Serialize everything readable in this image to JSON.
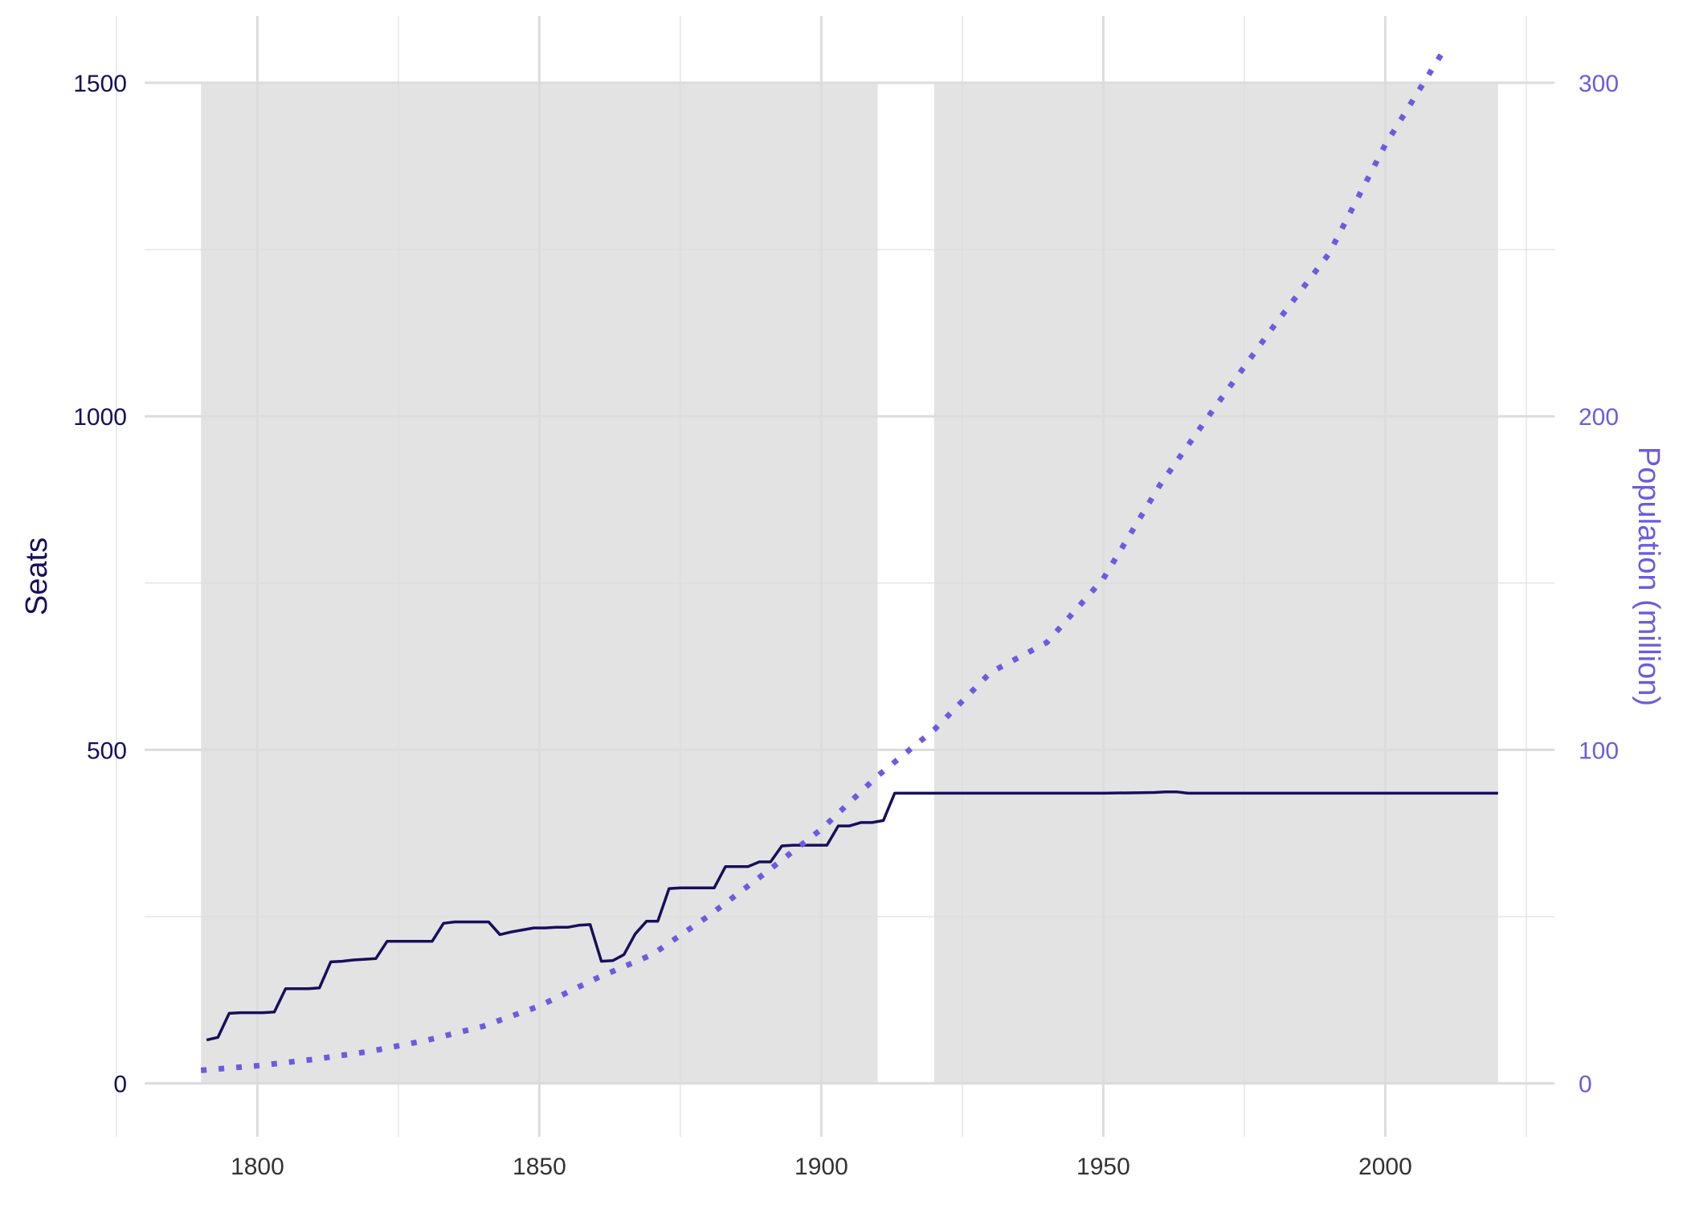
{
  "chart_data": {
    "type": "line",
    "title": "",
    "xlabel": "",
    "ylabel": "Seats",
    "ylabel_right": "Population (million)",
    "xlim": [
      1780,
      2030
    ],
    "ylim": [
      -80,
      1600
    ],
    "ylim_right": [
      -16,
      320
    ],
    "grid": true,
    "legend": "none",
    "x_ticks": [
      1800,
      1850,
      1900,
      1950,
      2000
    ],
    "y_ticks": [
      0,
      500,
      1000,
      1500
    ],
    "y_ticks_right": [
      0,
      100,
      200,
      300
    ],
    "colors": {
      "seats": "#170f5c",
      "population": "#6b5cdd",
      "left_axis_text": "#170f5c",
      "right_axis_text": "#6b5cdd",
      "period_band": "#e3e3e3",
      "grid": "#dcdcdc"
    },
    "shaded_periods": [
      {
        "start": 1790,
        "end": 1910,
        "ymin": 0,
        "ymax": 1500
      },
      {
        "start": 1920,
        "end": 2020,
        "ymin": 0,
        "ymax": 1500
      }
    ],
    "series": [
      {
        "key": "seats",
        "axis": "left",
        "style": "solid",
        "points": [
          [
            1791,
            65
          ],
          [
            1793,
            69
          ],
          [
            1795,
            105
          ],
          [
            1797,
            106
          ],
          [
            1799,
            106
          ],
          [
            1801,
            106
          ],
          [
            1803,
            107
          ],
          [
            1805,
            142
          ],
          [
            1807,
            142
          ],
          [
            1809,
            142
          ],
          [
            1811,
            143
          ],
          [
            1813,
            182
          ],
          [
            1815,
            183
          ],
          [
            1817,
            185
          ],
          [
            1819,
            186
          ],
          [
            1821,
            187
          ],
          [
            1823,
            213
          ],
          [
            1825,
            213
          ],
          [
            1827,
            213
          ],
          [
            1829,
            213
          ],
          [
            1831,
            213
          ],
          [
            1833,
            240
          ],
          [
            1835,
            242
          ],
          [
            1837,
            242
          ],
          [
            1839,
            242
          ],
          [
            1841,
            242
          ],
          [
            1843,
            223
          ],
          [
            1845,
            227
          ],
          [
            1847,
            230
          ],
          [
            1849,
            233
          ],
          [
            1851,
            233
          ],
          [
            1853,
            234
          ],
          [
            1855,
            234
          ],
          [
            1857,
            237
          ],
          [
            1859,
            238
          ],
          [
            1861,
            183
          ],
          [
            1863,
            184
          ],
          [
            1865,
            193
          ],
          [
            1867,
            224
          ],
          [
            1869,
            243
          ],
          [
            1871,
            243
          ],
          [
            1873,
            292
          ],
          [
            1875,
            293
          ],
          [
            1877,
            293
          ],
          [
            1879,
            293
          ],
          [
            1881,
            293
          ],
          [
            1883,
            325
          ],
          [
            1885,
            325
          ],
          [
            1887,
            325
          ],
          [
            1889,
            332
          ],
          [
            1891,
            332
          ],
          [
            1893,
            356
          ],
          [
            1895,
            357
          ],
          [
            1897,
            357
          ],
          [
            1899,
            357
          ],
          [
            1901,
            357
          ],
          [
            1903,
            386
          ],
          [
            1905,
            386
          ],
          [
            1907,
            391
          ],
          [
            1909,
            391
          ],
          [
            1911,
            394
          ],
          [
            1913,
            435
          ],
          [
            1915,
            435
          ],
          [
            1950,
            435
          ],
          [
            1959,
            436
          ],
          [
            1961,
            437
          ],
          [
            1963,
            437
          ],
          [
            1965,
            435
          ],
          [
            2020,
            435
          ]
        ]
      },
      {
        "key": "population",
        "axis": "right",
        "style": "dotted",
        "points": [
          [
            1790,
            3.9
          ],
          [
            1800,
            5.3
          ],
          [
            1810,
            7.2
          ],
          [
            1820,
            9.6
          ],
          [
            1830,
            12.9
          ],
          [
            1840,
            17.1
          ],
          [
            1850,
            23.2
          ],
          [
            1860,
            31.4
          ],
          [
            1870,
            38.6
          ],
          [
            1880,
            50.2
          ],
          [
            1890,
            63.0
          ],
          [
            1900,
            76.2
          ],
          [
            1910,
            92.2
          ],
          [
            1920,
            106.0
          ],
          [
            1930,
            123.2
          ],
          [
            1940,
            132.2
          ],
          [
            1950,
            151.3
          ],
          [
            1960,
            179.3
          ],
          [
            1970,
            203.2
          ],
          [
            1980,
            226.5
          ],
          [
            1990,
            248.7
          ],
          [
            2000,
            281.4
          ],
          [
            2010,
            308.7
          ]
        ]
      }
    ]
  }
}
